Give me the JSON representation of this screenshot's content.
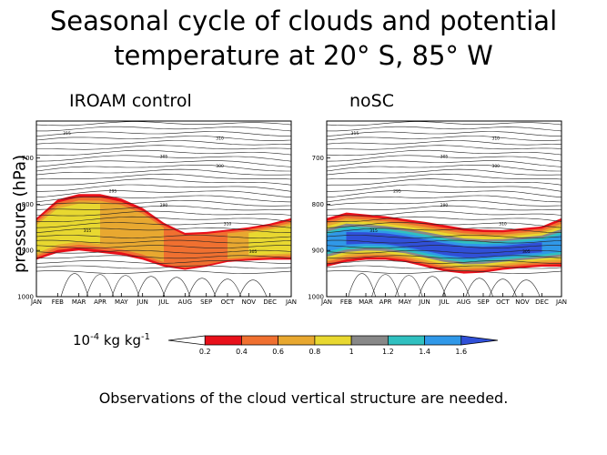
{
  "title_line1": "Seasonal cycle of clouds and potential",
  "title_line2": "temperature at 20° S, 85° W",
  "ylabel": "pressure (hPa)",
  "units": {
    "base": "10",
    "exp1": "-4",
    "mid": " kg kg",
    "exp2": "-1"
  },
  "caption": "Observations of the cloud vertical structure are needed.",
  "chart_data": [
    {
      "type": "heatmap",
      "title": "IROAM control",
      "xlabel": "",
      "ylabel": "pressure (hPa)",
      "x": [
        "JAN",
        "FEB",
        "MAR",
        "APR",
        "MAY",
        "JUN",
        "JUL",
        "AUG",
        "SEP",
        "OCT",
        "NOV",
        "DEC",
        "JAN"
      ],
      "yticks": [
        700,
        800,
        900,
        1000
      ],
      "ylim": [
        1000,
        620
      ],
      "cloud_top_hPa": [
        830,
        790,
        778,
        778,
        788,
        808,
        840,
        862,
        860,
        855,
        850,
        842,
        830
      ],
      "cloud_base_hPa": [
        920,
        905,
        900,
        905,
        910,
        920,
        935,
        942,
        935,
        925,
        922,
        920,
        920
      ],
      "max_mixing_ratio": [
        0.8,
        0.8,
        0.8,
        0.8,
        0.6,
        0.6,
        0.6,
        0.4,
        0.4,
        0.6,
        0.8,
        0.8,
        0.8
      ],
      "contour_labels": [
        "315",
        "310",
        "305",
        "300",
        "295",
        "290"
      ]
    },
    {
      "type": "heatmap",
      "title": "noSC",
      "xlabel": "",
      "ylabel": "pressure (hPa)",
      "x": [
        "JAN",
        "FEB",
        "MAR",
        "APR",
        "MAY",
        "JUN",
        "JUL",
        "AUG",
        "SEP",
        "OCT",
        "NOV",
        "DEC",
        "JAN"
      ],
      "yticks": [
        700,
        800,
        900,
        1000
      ],
      "ylim": [
        1000,
        620
      ],
      "cloud_top_hPa": [
        830,
        818,
        822,
        826,
        832,
        838,
        845,
        852,
        855,
        856,
        852,
        848,
        830
      ],
      "cloud_base_hPa": [
        935,
        925,
        920,
        920,
        925,
        935,
        945,
        950,
        948,
        942,
        938,
        935,
        935
      ],
      "max_mixing_ratio": [
        1.4,
        1.6,
        1.6,
        1.6,
        1.6,
        1.6,
        1.6,
        1.6,
        1.6,
        1.6,
        1.6,
        1.6,
        1.4
      ],
      "contour_labels": [
        "315",
        "310",
        "305",
        "300",
        "295",
        "290"
      ]
    }
  ],
  "colorbar": {
    "label": "10-4 kg kg-1",
    "levels": [
      "0.2",
      "0.4",
      "0.6",
      "0.8",
      "1",
      "1.2",
      "1.4",
      "1.6"
    ],
    "colors": [
      "#ffffff",
      "#e8101a",
      "#f07030",
      "#e8a830",
      "#e8d830",
      "#888888",
      "#30c0c0",
      "#3098e8",
      "#3050d8"
    ]
  }
}
